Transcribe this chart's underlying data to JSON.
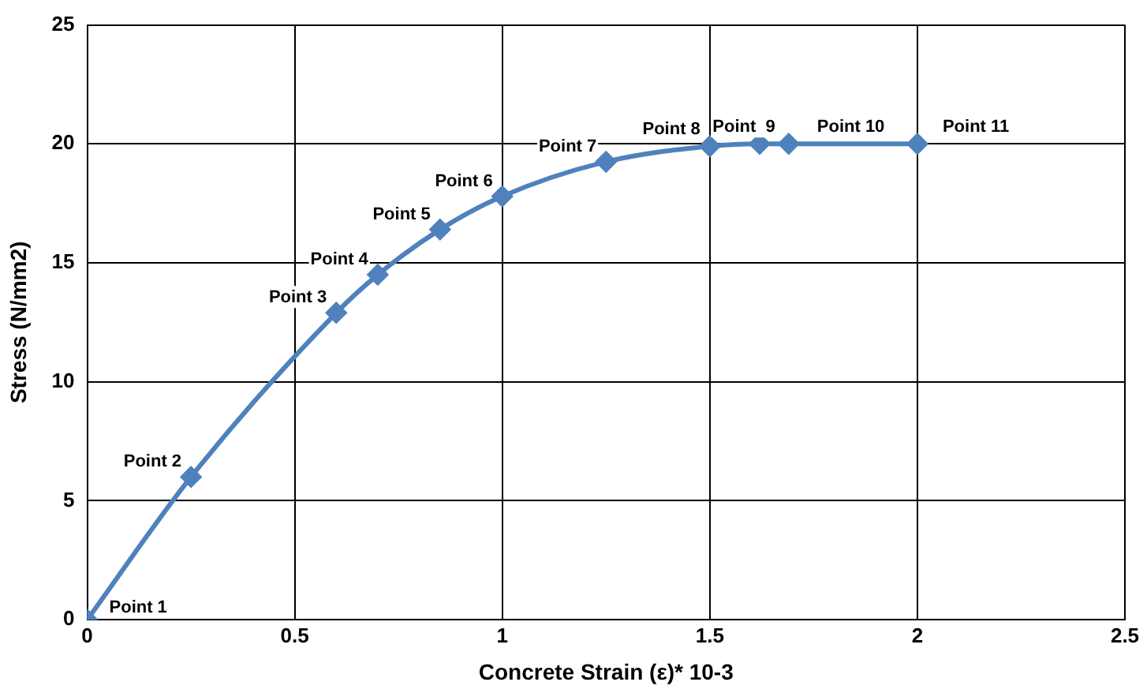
{
  "chart_data": {
    "type": "line",
    "xlabel": "Concrete Strain (ε)* 10-3",
    "ylabel": "Stress (N/mm2)",
    "x": [
      0,
      0.25,
      0.6,
      0.7,
      0.85,
      1.0,
      1.25,
      1.5,
      1.62,
      1.69,
      2.0
    ],
    "series": [
      {
        "color": "#4f81bd",
        "values": [
          0,
          6.0,
          12.9,
          14.5,
          16.4,
          17.8,
          19.25,
          19.9,
          20,
          20,
          20
        ]
      }
    ],
    "xlim": [
      0,
      2.5
    ],
    "xticks": [
      0,
      0.5,
      1,
      1.5,
      2,
      2.5
    ],
    "ylim": [
      0,
      25
    ],
    "yticks": [
      0,
      5,
      10,
      15,
      20,
      25
    ],
    "grid": true,
    "legend": false,
    "marker": "diamond",
    "line_style": "solid",
    "annotations": [
      {
        "text": "Point 1",
        "x": 0,
        "y": 0
      },
      {
        "text": "Point 2",
        "x": 0.25,
        "y": 6.0
      },
      {
        "text": "Point 3",
        "x": 0.6,
        "y": 12.9
      },
      {
        "text": "Point 4",
        "x": 0.7,
        "y": 14.5
      },
      {
        "text": "Point 5",
        "x": 0.85,
        "y": 16.4
      },
      {
        "text": "Point 6",
        "x": 1.0,
        "y": 17.8
      },
      {
        "text": "Point 7",
        "x": 1.25,
        "y": 19.25
      },
      {
        "text": "Point 8",
        "x": 1.5,
        "y": 19.9
      },
      {
        "text": "Point  9",
        "x": 1.62,
        "y": 20
      },
      {
        "text": "Point 10",
        "x": 1.69,
        "y": 20
      },
      {
        "text": "Point 11",
        "x": 2.0,
        "y": 20
      }
    ]
  }
}
